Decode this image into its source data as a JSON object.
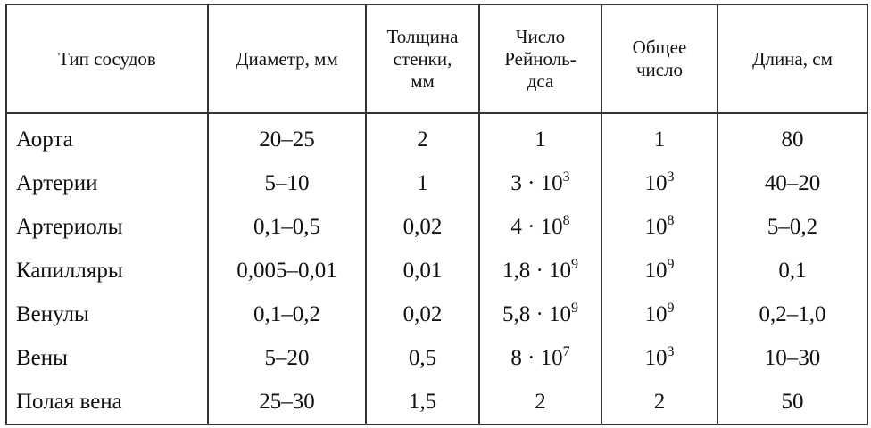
{
  "table": {
    "headers": [
      "Тип сосудов",
      "Диаметр, мм",
      "Толщина\nстенки,\nмм",
      "Число\nРейноль-\nдса",
      "Общее\nчисло",
      "Длина, см"
    ],
    "rows": [
      {
        "type": "Аорта",
        "diameter": "20–25",
        "wall": "2",
        "reynolds": {
          "base": "1",
          "exp": ""
        },
        "count": {
          "base": "1",
          "exp": ""
        },
        "length": "80"
      },
      {
        "type": "Артерии",
        "diameter": "5–10",
        "wall": "1",
        "reynolds": {
          "base": "3 · 10",
          "exp": "3"
        },
        "count": {
          "base": "10",
          "exp": "3"
        },
        "length": "40–20"
      },
      {
        "type": "Артериолы",
        "diameter": "0,1–0,5",
        "wall": "0,02",
        "reynolds": {
          "base": "4 · 10",
          "exp": "8"
        },
        "count": {
          "base": "10",
          "exp": "8"
        },
        "length": "5–0,2"
      },
      {
        "type": "Капилляры",
        "diameter": "0,005–0,01",
        "wall": "0,01",
        "reynolds": {
          "base": "1,8 · 10",
          "exp": "9"
        },
        "count": {
          "base": "10",
          "exp": "9"
        },
        "length": "0,1"
      },
      {
        "type": "Венулы",
        "diameter": "0,1–0,2",
        "wall": "0,02",
        "reynolds": {
          "base": "5,8 · 10",
          "exp": "9"
        },
        "count": {
          "base": "10",
          "exp": "9"
        },
        "length": "0,2–1,0"
      },
      {
        "type": "Вены",
        "diameter": "5–20",
        "wall": "0,5",
        "reynolds": {
          "base": "8 · 10",
          "exp": "7"
        },
        "count": {
          "base": "10",
          "exp": "3"
        },
        "length": "10–30"
      },
      {
        "type": "Полая вена",
        "diameter": "25–30",
        "wall": "1,5",
        "reynolds": {
          "base": "2",
          "exp": ""
        },
        "count": {
          "base": "2",
          "exp": ""
        },
        "length": "50"
      }
    ]
  }
}
